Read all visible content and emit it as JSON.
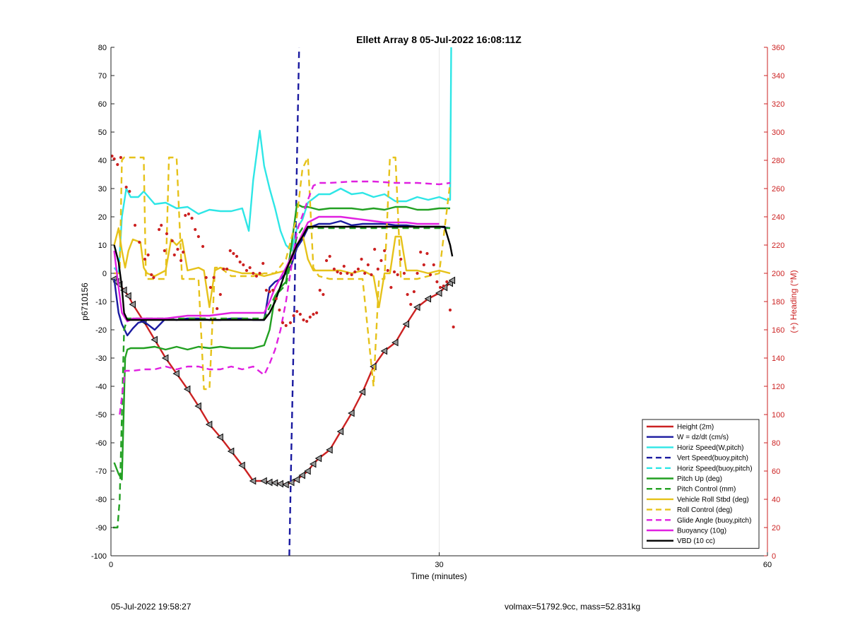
{
  "chart_data": {
    "type": "line",
    "title": "Ellett Array 8 05-Jul-2022 16:08:11Z",
    "xlabel": "Time (minutes)",
    "ylabel": "p6710156",
    "y2label": "(+) Heading (°M)",
    "xlim": [
      0,
      60
    ],
    "ylim": [
      -100,
      80
    ],
    "y2lim": [
      0,
      360
    ],
    "xticks": [
      0,
      30,
      60
    ],
    "yticks": [
      -100,
      -90,
      -80,
      -70,
      -60,
      -50,
      -40,
      -30,
      -20,
      -10,
      0,
      10,
      20,
      30,
      40,
      50,
      60,
      70,
      80
    ],
    "y2ticks": [
      0,
      20,
      40,
      60,
      80,
      100,
      120,
      140,
      160,
      180,
      200,
      220,
      240,
      260,
      280,
      300,
      320,
      340,
      360
    ],
    "grid": "x-only",
    "legend_position": "bottom-right",
    "colors": {
      "red": "#cc2222",
      "blue": "#1a1aa0",
      "cyan": "#2ee6e6",
      "green": "#22a022",
      "yellow": "#e6c21a",
      "magenta": "#e020e0",
      "black": "#000000",
      "axis_right": "#cc2222",
      "grid": "#e6e6e6"
    },
    "series": [
      {
        "name": "Height (2m)",
        "color": "#cc2222",
        "style": "solid",
        "marker": "triangle-left",
        "x": [
          0.3,
          0.5,
          0.8,
          1.2,
          1.6,
          2,
          3,
          4,
          5,
          6,
          7,
          8,
          9,
          10,
          11,
          12,
          13,
          14,
          14.5,
          15,
          15.5,
          16,
          16.5,
          17,
          17.5,
          18,
          18.5,
          19,
          20,
          21,
          22,
          23,
          24,
          25,
          26,
          27,
          28,
          29,
          30,
          30.5,
          31,
          31.2
        ],
        "y": [
          -2,
          -3,
          -4,
          -6,
          -8,
          -11,
          -17,
          -23.5,
          -30,
          -35.5,
          -41,
          -47,
          -53.5,
          -58,
          -63,
          -68,
          -73.5,
          -73.5,
          -74,
          -74.2,
          -74.5,
          -74.8,
          -74,
          -73,
          -71.5,
          -70,
          -67.5,
          -65.5,
          -62.5,
          -56,
          -49.5,
          -42,
          -33,
          -27.5,
          -24.5,
          -18,
          -12,
          -9,
          -7,
          -5,
          -3.5,
          -2.5
        ]
      },
      {
        "name": "W = dz/dt (cm/s)",
        "color": "#1a1aa0",
        "style": "solid",
        "x": [
          0.3,
          0.7,
          1,
          1.5,
          2,
          2.5,
          3,
          4,
          5,
          6,
          7,
          8,
          9,
          10,
          11,
          12,
          13,
          14,
          14.5,
          15,
          15.5,
          16,
          16.5,
          17,
          17.5,
          18,
          19,
          20,
          21,
          22,
          23,
          24,
          25,
          26,
          27,
          28,
          29,
          30,
          31
        ],
        "y": [
          -2,
          -14,
          -18,
          -22,
          -19.5,
          -17.5,
          -17,
          -20,
          -16,
          -16.5,
          -16,
          -16,
          -16.5,
          -16.5,
          -16,
          -16,
          -16.5,
          -16.5,
          -5,
          -3,
          -2,
          0,
          3,
          9,
          12,
          16,
          17.5,
          17.5,
          18.5,
          17,
          17.5,
          17.5,
          17.5,
          17,
          17,
          16.5,
          16.5,
          16.5,
          16
        ]
      },
      {
        "name": "Horiz Speed(W,pitch)",
        "color": "#2ee6e6",
        "style": "solid",
        "x": [
          0.3,
          0.7,
          1,
          1.4,
          1.8,
          2.5,
          3,
          4,
          5,
          6,
          7,
          8,
          9,
          10,
          11,
          12,
          12.6,
          13,
          13.6,
          14,
          14.5,
          15,
          15.5,
          16,
          16.5,
          17,
          17.5,
          18,
          19,
          20,
          21,
          22,
          23,
          24,
          25,
          26,
          27,
          28,
          29,
          30,
          30.7,
          31,
          31.1
        ],
        "y": [
          2,
          0,
          20,
          30,
          27,
          27,
          29,
          24.5,
          25,
          23,
          23.5,
          21,
          22.5,
          22,
          22,
          23,
          15,
          33,
          50.5,
          38,
          30,
          23,
          15,
          10,
          8,
          16,
          19,
          25,
          28,
          28,
          30,
          28,
          28.5,
          27,
          28,
          25.5,
          25.5,
          27,
          26,
          27,
          26,
          26,
          80
        ]
      },
      {
        "name": "Vert Speed(buoy,pitch)",
        "color": "#1a1aa0",
        "style": "dashed",
        "x": [
          16.3,
          16.5,
          16.8,
          17,
          17.2
        ],
        "y": [
          -100,
          -60,
          -5,
          40,
          80
        ]
      },
      {
        "name": "Horiz Speed(buoy,pitch)",
        "color": "#2ee6e6",
        "style": "dashed",
        "x": [],
        "y": []
      },
      {
        "name": "Pitch Up (deg)",
        "color": "#22a022",
        "style": "solid",
        "x": [
          0.3,
          0.7,
          1,
          1.3,
          1.5,
          1.8,
          3,
          4,
          5,
          6,
          7,
          8,
          9,
          10,
          11,
          12,
          13,
          14,
          14.5,
          15,
          15.5,
          16,
          16.5,
          17,
          17.5,
          18,
          19,
          20,
          21,
          22,
          23,
          24,
          25,
          26,
          27,
          28,
          29,
          30,
          31
        ],
        "y": [
          -67,
          -71,
          -73,
          -30,
          -27,
          -26.5,
          -26.5,
          -26,
          -27,
          -26,
          -27,
          -26,
          -26.5,
          -26,
          -26.5,
          -26.5,
          -26.5,
          -25.5,
          -20,
          -8,
          -5,
          -3,
          10,
          24.5,
          23.5,
          23.5,
          22.5,
          23,
          23,
          23,
          22.5,
          23,
          22.5,
          23.5,
          23.5,
          22.5,
          22.5,
          23,
          23
        ]
      },
      {
        "name": "Pitch Control (mm)",
        "color": "#22a022",
        "style": "dashed",
        "x": [
          0.2,
          0.6,
          0.8,
          1,
          1.2,
          1.5,
          2,
          14,
          14.5,
          15,
          15.5,
          16,
          16.5,
          17,
          17.5,
          18,
          30,
          31
        ],
        "y": [
          -90,
          -90,
          -80,
          -50,
          -20,
          -16,
          -16,
          -16,
          -12,
          -8,
          -6,
          -4,
          5,
          13,
          16,
          16,
          16,
          16
        ]
      },
      {
        "name": "Vehicle Roll Stbd (deg)",
        "color": "#e6c21a",
        "style": "solid",
        "x": [
          0.3,
          0.7,
          1,
          1.3,
          1.6,
          2,
          2.7,
          3,
          3.3,
          4,
          5,
          5.5,
          6,
          6.5,
          7,
          8,
          8.5,
          9,
          9.5,
          10,
          11,
          12,
          13,
          14,
          15,
          16,
          16.5,
          17,
          17.5,
          18,
          18.5,
          19,
          20,
          21,
          22,
          23,
          24,
          24.5,
          25,
          25.5,
          26,
          26.5,
          27,
          28,
          29,
          30,
          31
        ],
        "y": [
          10,
          16,
          8,
          2,
          8,
          12,
          11,
          2,
          0,
          -1,
          1,
          12,
          10,
          12,
          1,
          2,
          1,
          -12,
          1,
          2,
          1,
          0,
          0,
          -1,
          0,
          1,
          5,
          10,
          14,
          5,
          1,
          1,
          1,
          1,
          0,
          1,
          -1,
          -12,
          0,
          0,
          13,
          13,
          1,
          1,
          0,
          1,
          0
        ]
      },
      {
        "name": "Roll Control (deg)",
        "color": "#e6c21a",
        "style": "dashed",
        "x": [
          0.3,
          0.8,
          1,
          1.2,
          1.3,
          3,
          3.2,
          4,
          5,
          5.3,
          6,
          6.5,
          7,
          8,
          8.5,
          9,
          9.5,
          10,
          11,
          12,
          13,
          14,
          15,
          16,
          17,
          17.5,
          18,
          18.5,
          19,
          20,
          23,
          24,
          24.5,
          25,
          25.5,
          26,
          26.5,
          27,
          28,
          30,
          31
        ],
        "y": [
          0,
          0,
          40,
          41,
          41,
          41,
          -2,
          -2,
          -2,
          41,
          41,
          -2,
          -2,
          -2,
          -41,
          -41,
          2,
          2,
          -1,
          -1,
          -1,
          0,
          0,
          5,
          20,
          37,
          41,
          2,
          -1,
          -2,
          -2,
          -40,
          -2,
          -2,
          41,
          41,
          -2,
          -2,
          -2,
          0,
          32
        ]
      },
      {
        "name": "Glide Angle (buoy,pitch)",
        "color": "#e020e0",
        "style": "dashed",
        "x": [
          0.8,
          1.3,
          2,
          3,
          4,
          5,
          6,
          7,
          8,
          9,
          10,
          11,
          12,
          13,
          14,
          14.5,
          15,
          15.5,
          16,
          17,
          18,
          18.5,
          19,
          20,
          22,
          24,
          26,
          28,
          30,
          31
        ],
        "y": [
          -50,
          -34.5,
          -34.5,
          -34,
          -34,
          -33,
          -34,
          -33,
          -33,
          -34,
          -34,
          -33,
          -34,
          -33,
          -36,
          -32,
          -27,
          -20,
          -10,
          15,
          26,
          31,
          32,
          32,
          32.5,
          32.5,
          32,
          32,
          31.5,
          32
        ]
      },
      {
        "name": "Buoyancy (10g)",
        "color": "#e020e0",
        "style": "solid",
        "x": [
          0.3,
          0.7,
          1,
          1.5,
          2,
          5,
          6,
          7,
          8,
          9,
          10,
          11,
          12,
          13,
          14,
          14.5,
          15,
          16,
          17,
          17.5,
          18,
          19,
          20,
          21,
          22,
          23,
          24,
          25,
          26,
          27,
          28,
          29,
          30
        ],
        "y": [
          8,
          -5,
          -14,
          -17,
          -16,
          -16,
          -15.5,
          -15,
          -15,
          -15,
          -14.5,
          -14,
          -14,
          -14,
          -14,
          -10,
          -5,
          2,
          10,
          14,
          18,
          20,
          20,
          20,
          19.5,
          19,
          18.5,
          18,
          18,
          18,
          17.5,
          17.5,
          17.5
        ]
      },
      {
        "name": "VBD (10 cc)",
        "color": "#000000",
        "style": "solid",
        "x": [
          0.3,
          0.7,
          1,
          1.2,
          1.5,
          14,
          14.5,
          15,
          16,
          17,
          17.5,
          18,
          18.5,
          30.5,
          31,
          31.2
        ],
        "y": [
          10,
          4,
          -5,
          -14,
          -16.5,
          -16.5,
          -14,
          -10,
          1,
          10,
          13,
          16.5,
          16.5,
          16.5,
          10,
          6
        ]
      },
      {
        "name": "heading points (°M)",
        "axis": "right",
        "color": "#cc2222",
        "style": "marker-only",
        "marker": "dot",
        "x": [
          0.1,
          0.3,
          0.6,
          0.9,
          1.4,
          1.7,
          2.2,
          2.6,
          3.1,
          3.4,
          3.7,
          3.9,
          4.4,
          4.6,
          4.9,
          5.1,
          5.6,
          5.8,
          6.1,
          6.4,
          6.6,
          6.8,
          7.1,
          7.4,
          7.7,
          8.0,
          8.4,
          8.7,
          9.1,
          9.4,
          9.7,
          10.0,
          10.3,
          10.6,
          10.9,
          11.2,
          11.5,
          11.8,
          12.1,
          12.4,
          12.7,
          13.0,
          13.3,
          13.6,
          13.9,
          14.2,
          14.5,
          14.8,
          15.1,
          15.4,
          15.7,
          16.0,
          16.4,
          16.7,
          17.0,
          17.3,
          17.6,
          17.9,
          18.2,
          18.5,
          18.8,
          19.1,
          19.4,
          19.7,
          20.0,
          20.4,
          20.7,
          21.0,
          21.3,
          21.6,
          22.0,
          22.3,
          22.6,
          22.9,
          23.2,
          23.5,
          23.8,
          24.1,
          24.4,
          24.7,
          25.0,
          25.3,
          25.6,
          25.9,
          26.2,
          26.5,
          26.8,
          27.1,
          27.4,
          27.7,
          28.0,
          28.3,
          28.6,
          28.9,
          29.2,
          29.5,
          29.8,
          30.1,
          30.4,
          30.7,
          31.0,
          31.3
        ],
        "y": [
          283,
          281,
          277,
          282,
          261,
          258,
          234,
          222,
          210,
          213,
          199,
          197,
          231,
          234,
          216,
          228,
          223,
          213,
          217,
          209,
          215,
          241,
          242,
          239,
          231,
          226,
          219,
          197,
          190,
          197,
          175,
          185,
          203,
          203,
          216,
          214,
          212,
          208,
          206,
          202,
          204,
          200,
          198,
          200,
          207,
          188,
          187,
          188,
          182,
          174,
          165,
          163,
          165,
          170,
          173,
          171,
          167,
          166,
          169,
          171,
          172,
          188,
          185,
          209,
          212,
          203,
          201,
          200,
          205,
          200,
          199,
          201,
          203,
          210,
          200,
          206,
          199,
          217,
          203,
          209,
          216,
          202,
          190,
          201,
          199,
          210,
          200,
          185,
          178,
          187,
          200,
          215,
          206,
          214,
          199,
          206,
          194,
          190,
          191,
          194,
          174,
          162
        ]
      }
    ]
  },
  "footer": {
    "left_text": "05-Jul-2022 19:58:27",
    "right_text": "volmax=51792.9cc, mass=52.831kg"
  }
}
